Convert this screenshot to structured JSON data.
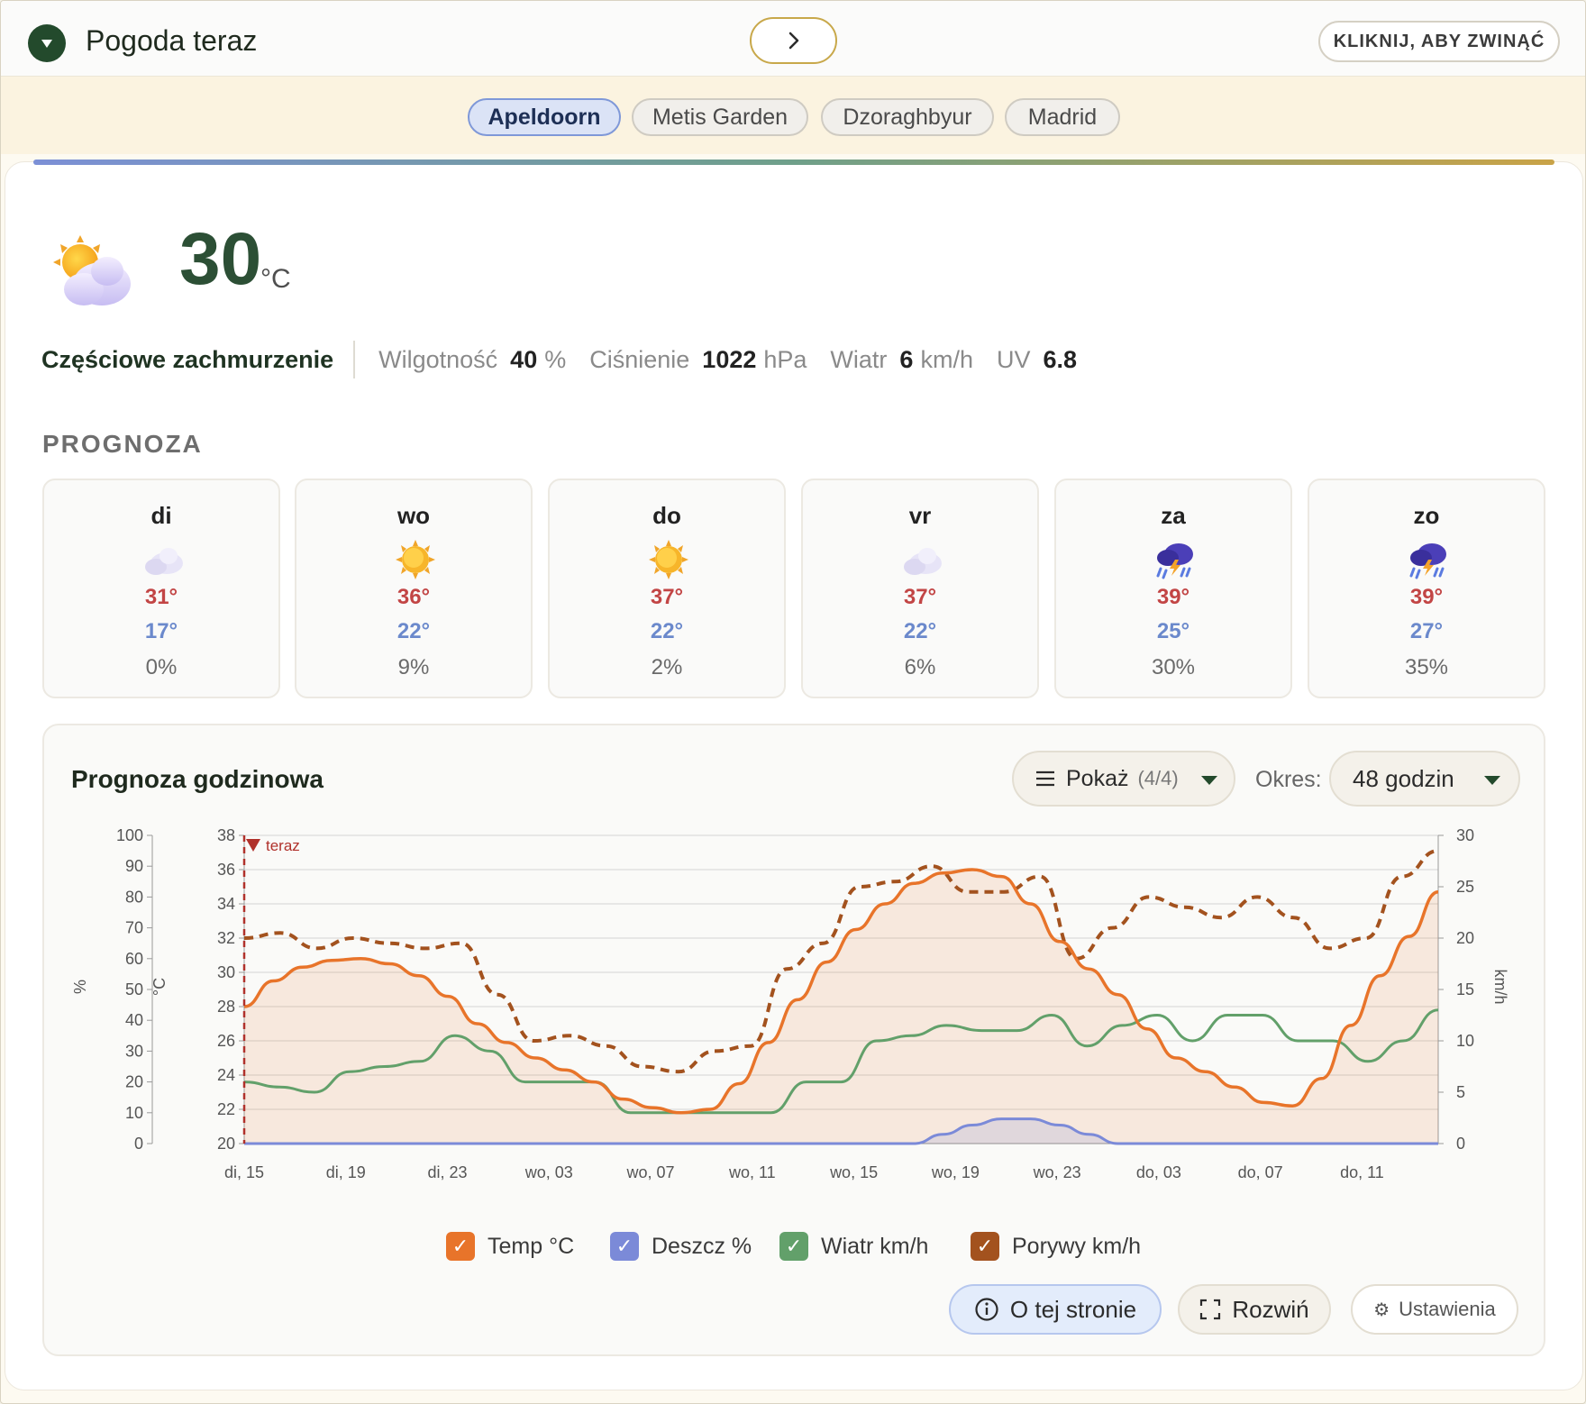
{
  "header": {
    "title": "Pogoda teraz",
    "collapse_label": "KLIKNIJ, ABY ZWINĄĆ"
  },
  "locations": [
    "Apeldoorn",
    "Metis Garden",
    "Dzoraghbyur",
    "Madrid"
  ],
  "active_location": "Apeldoorn",
  "current": {
    "icon": "sun-behind-cloud-icon",
    "temp": "30",
    "unit": "°C",
    "condition": "Częściowe zachmurzenie",
    "humidity_label": "Wilgotność",
    "humidity_value": "40",
    "humidity_unit": "%",
    "pressure_label": "Ciśnienie",
    "pressure_value": "1022",
    "pressure_unit": "hPa",
    "wind_label": "Wiatr",
    "wind_value": "6",
    "wind_unit": "km/h",
    "uv_label": "UV",
    "uv_value": "6.8"
  },
  "forecast": {
    "title": "PROGNOZA",
    "days": [
      {
        "day": "di",
        "icon": "cloud-icon",
        "high": "31°",
        "low": "17°",
        "rain": "0%"
      },
      {
        "day": "wo",
        "icon": "sun-icon",
        "high": "36°",
        "low": "22°",
        "rain": "9%"
      },
      {
        "day": "do",
        "icon": "sun-icon",
        "high": "37°",
        "low": "22°",
        "rain": "2%"
      },
      {
        "day": "vr",
        "icon": "cloud-icon",
        "high": "37°",
        "low": "22°",
        "rain": "6%"
      },
      {
        "day": "za",
        "icon": "thunderstorm-icon",
        "high": "39°",
        "low": "25°",
        "rain": "30%"
      },
      {
        "day": "zo",
        "icon": "thunderstorm-icon",
        "high": "39°",
        "low": "27°",
        "rain": "35%"
      }
    ]
  },
  "hourly": {
    "title": "Prognoza godzinowa",
    "show_label": "Pokaż",
    "show_count": "(4/4)",
    "period_label": "Okres:",
    "period_value": "48 godzin",
    "about_label": "O tej stronie",
    "expand_label": "Rozwiń",
    "settings_label": "Ustawienia"
  },
  "colors": {
    "temp": "#e8742a",
    "rain": "#7b8ad8",
    "wind": "#62a06a",
    "gusts": "#a3521e",
    "now_marker": "#b0312b",
    "accent": "#234a2c"
  },
  "chart_data": {
    "type": "line",
    "now_label": "teraz",
    "x_ticks": [
      "di, 15",
      "di, 19",
      "di, 23",
      "wo, 03",
      "wo, 07",
      "wo, 11",
      "wo, 15",
      "wo, 19",
      "wo, 23",
      "do, 03",
      "do, 07",
      "do, 11"
    ],
    "hours": [
      0,
      1,
      2,
      3,
      4,
      5,
      6,
      7,
      8,
      9,
      10,
      11,
      12,
      13,
      14,
      15,
      16,
      17,
      18,
      19,
      20,
      21,
      22,
      23,
      24,
      25,
      26,
      27,
      28,
      29,
      30,
      31,
      32,
      33,
      34,
      35,
      36,
      37,
      38,
      39,
      40,
      41,
      42,
      43,
      44,
      45,
      46,
      47
    ],
    "y_left_percent": {
      "label": "%",
      "range": [
        0,
        100
      ],
      "ticks": [
        0,
        10,
        20,
        30,
        40,
        50,
        60,
        70,
        80,
        90,
        100
      ]
    },
    "y_left_temp": {
      "label": "°C",
      "range": [
        20,
        38
      ],
      "ticks": [
        20,
        22,
        24,
        26,
        28,
        30,
        32,
        34,
        36,
        38
      ]
    },
    "y_right_wind": {
      "label": "km/h",
      "range": [
        0,
        30
      ],
      "ticks": [
        0,
        5,
        10,
        15,
        20,
        25,
        30
      ]
    },
    "series": [
      {
        "name": "Temp °C",
        "axis": "temp",
        "values": [
          28.0,
          29.5,
          30.3,
          30.7,
          30.8,
          30.5,
          29.8,
          28.6,
          27.0,
          25.9,
          25.0,
          24.3,
          23.6,
          22.6,
          22.1,
          21.8,
          22.0,
          23.5,
          25.9,
          28.4,
          30.6,
          32.5,
          34.0,
          35.2,
          35.8,
          36.0,
          35.6,
          34.0,
          31.8,
          30.2,
          28.7,
          26.7,
          25.0,
          24.2,
          23.3,
          22.4,
          22.2,
          23.8,
          26.9,
          29.8,
          32.1,
          34.7
        ]
      },
      {
        "name": "Deszcz %",
        "axis": "percent",
        "values": [
          0,
          0,
          0,
          0,
          0,
          0,
          0,
          0,
          0,
          0,
          0,
          0,
          0,
          0,
          0,
          0,
          0,
          0,
          0,
          0,
          0,
          0,
          0,
          0,
          3,
          6,
          8,
          8,
          6,
          3,
          0,
          0,
          0,
          0,
          0,
          0,
          0,
          0,
          0,
          0,
          0,
          0
        ]
      },
      {
        "name": "Wiatr km/h",
        "axis": "wind",
        "values": [
          6,
          5.5,
          5,
          7,
          7.5,
          8,
          10.5,
          9,
          6,
          6,
          6,
          3,
          3,
          3,
          3,
          3,
          6,
          6,
          10,
          10.5,
          11.5,
          11,
          11,
          12.5,
          9.5,
          11.5,
          12.5,
          10,
          12.5,
          12.5,
          10,
          10,
          8,
          10,
          13
        ]
      },
      {
        "name": "Porywy km/h",
        "axis": "wind",
        "values": [
          20,
          20.5,
          19,
          20,
          19.5,
          19,
          19.5,
          14.5,
          10,
          10.5,
          9.5,
          7.5,
          7,
          9,
          9.5,
          17,
          19.5,
          25,
          25.5,
          27,
          24.5,
          24.5,
          26,
          18,
          21,
          24,
          23,
          22,
          24,
          22,
          19,
          20,
          26,
          28.5
        ]
      }
    ]
  }
}
